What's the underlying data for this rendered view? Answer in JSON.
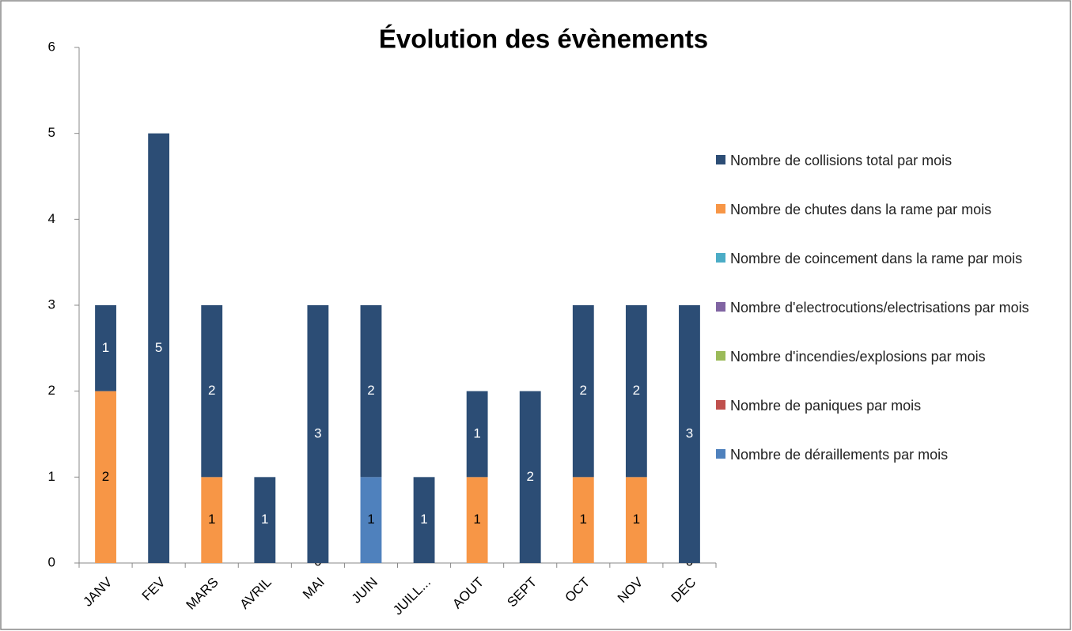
{
  "chart_data": {
    "type": "stacked_bar",
    "title": "Évolution des évènements",
    "categories": [
      "JANV",
      "FEV",
      "MARS",
      "AVRIL",
      "MAI",
      "JUIN",
      "JUILL...",
      "AOUT",
      "SEPT",
      "OCT",
      "NOV",
      "DEC"
    ],
    "series": [
      {
        "name": "Nombre de collisions  total par mois",
        "color": "#2c4d75",
        "values": [
          1,
          5,
          2,
          1,
          3,
          2,
          1,
          1,
          2,
          2,
          2,
          3
        ]
      },
      {
        "name": "Nombre de chutes dans la rame par mois",
        "color": "#f79646",
        "values": [
          2,
          null,
          1,
          null,
          0,
          null,
          null,
          1,
          null,
          1,
          1,
          0
        ]
      },
      {
        "name": "Nombre de coincement  dans la rame par mois",
        "color": "#4bacc6",
        "values": [
          null,
          null,
          null,
          null,
          null,
          null,
          null,
          null,
          null,
          null,
          null,
          null
        ]
      },
      {
        "name": "Nombre d'electrocutions/electrisations par mois",
        "color": "#8064a2",
        "values": [
          null,
          null,
          null,
          null,
          null,
          null,
          null,
          null,
          null,
          null,
          null,
          null
        ]
      },
      {
        "name": "Nombre d'incendies/explosions par mois",
        "color": "#9bbb59",
        "values": [
          null,
          null,
          null,
          null,
          null,
          null,
          null,
          null,
          null,
          null,
          null,
          null
        ]
      },
      {
        "name": "Nombre de paniques par mois",
        "color": "#c0504d",
        "values": [
          null,
          null,
          null,
          null,
          null,
          null,
          null,
          null,
          null,
          null,
          null,
          null
        ]
      },
      {
        "name": "Nombre de déraillements par mois",
        "color": "#4f81bd",
        "values": [
          null,
          null,
          null,
          null,
          null,
          1,
          null,
          null,
          null,
          null,
          null,
          null
        ]
      }
    ],
    "ylim": [
      0,
      6
    ],
    "yticks": [
      0,
      1,
      2,
      3,
      4,
      5,
      6
    ],
    "legend": "right",
    "grid": false
  }
}
